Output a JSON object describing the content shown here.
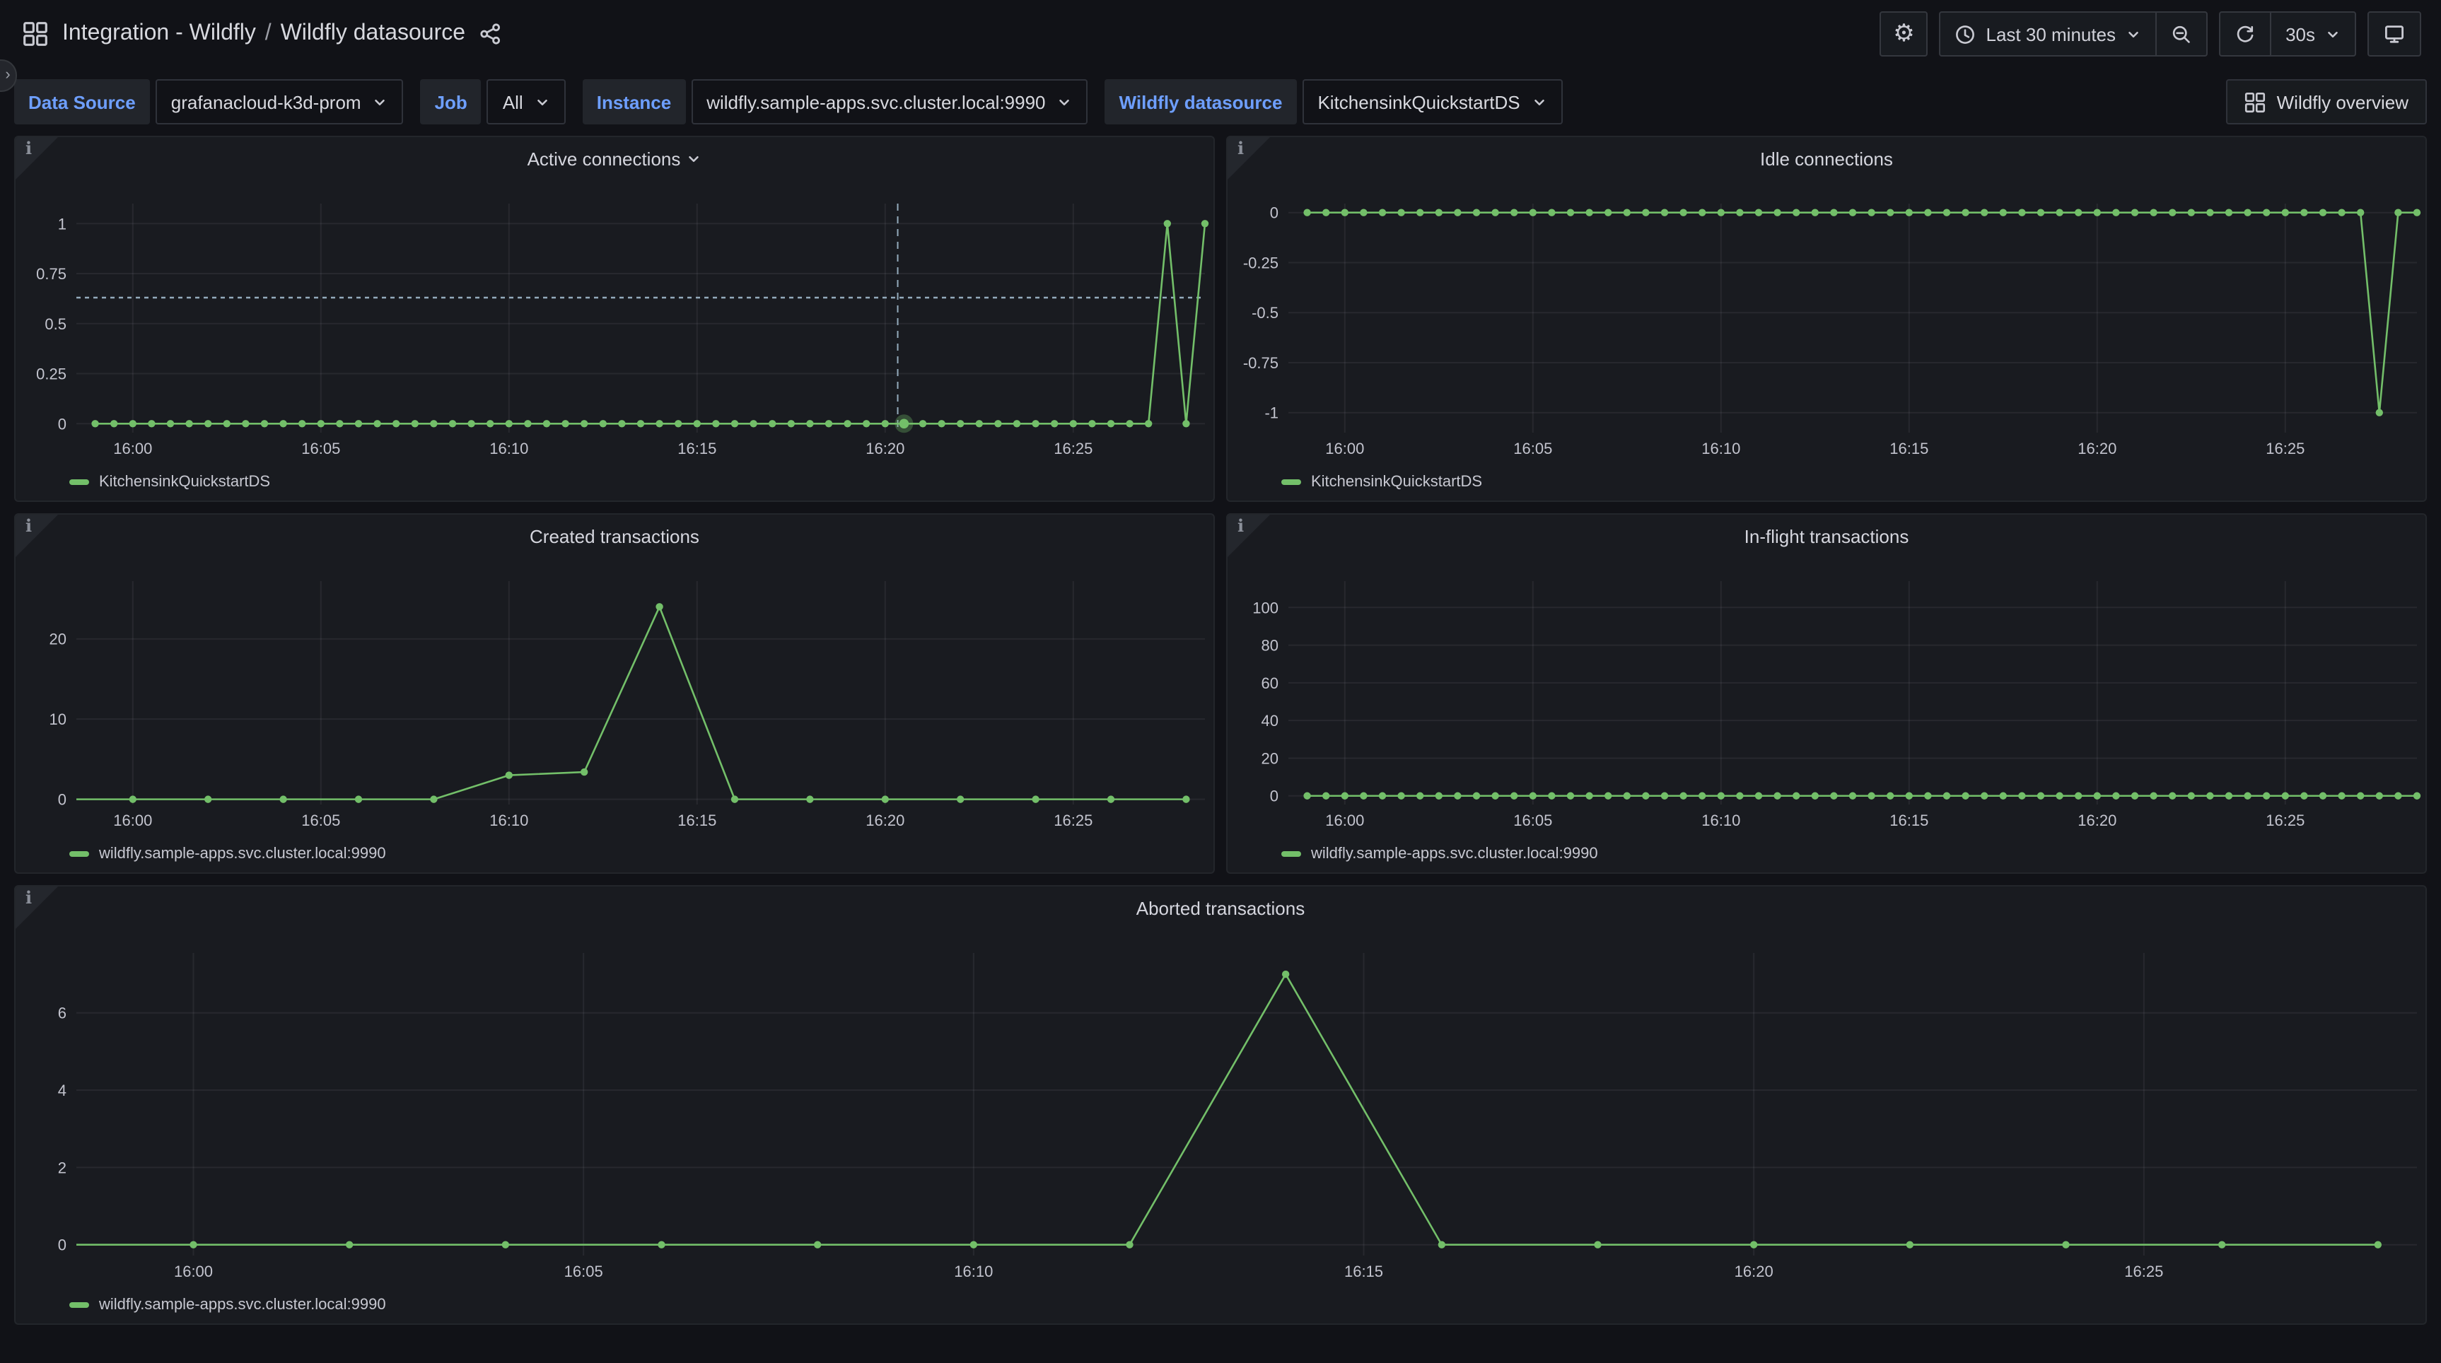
{
  "header": {
    "breadcrumb": {
      "folder": "Integration - Wildfly",
      "separator": "/",
      "dashboard": "Wildfly datasource"
    }
  },
  "toolbar": {
    "time_range_label": "Last 30 minutes",
    "refresh_interval": "30s",
    "gear_glyph": "⚙"
  },
  "edge_handle_glyph": "›",
  "panel_info_glyph": "i",
  "variables": [
    {
      "label": "Data Source",
      "value": "grafanacloud-k3d-prom"
    },
    {
      "label": "Job",
      "value": "All"
    },
    {
      "label": "Instance",
      "value": "wildfly.sample-apps.svc.cluster.local:9990"
    },
    {
      "label": "Wildfly datasource",
      "value": "KitchensinkQuickstartDS"
    }
  ],
  "overview_button": {
    "label": "Wildfly overview"
  },
  "colors": {
    "background": "#111217",
    "panel": "#191b20",
    "series_green": "#73BF69",
    "label_blue": "#6E9FFF",
    "crosshair": "#94abbc",
    "grid": "rgba(204,204,220,0.08)",
    "axis_text": "#c3c4ce"
  },
  "chart_data": [
    {
      "id": "active-connections",
      "type": "line",
      "title": "Active connections",
      "title_chevron": true,
      "legend": "KitchensinkQuickstartDS",
      "x_domain": [
        "15:58:30",
        "16:28:30"
      ],
      "x_ticks": [
        "16:00",
        "16:05",
        "16:10",
        "16:15",
        "16:20",
        "16:25"
      ],
      "y_min": -0.045,
      "y_max": 1.1,
      "y_ticks": [
        [
          0,
          "0"
        ],
        [
          0.25,
          "0.25"
        ],
        [
          0.5,
          "0.5"
        ],
        [
          0.75,
          "0.75"
        ],
        [
          1,
          "1"
        ]
      ],
      "series": {
        "name": "KitchensinkQuickstartDS",
        "color": "#73BF69",
        "start": "15:59:00",
        "interval_s": 30,
        "count": 60,
        "baseline": 0,
        "overrides": {
          "16:27:30": 1,
          "16:28:00": 0,
          "16:28:30": 1
        }
      },
      "crosshair": {
        "time": "16:20:20",
        "value": 0.63,
        "highlight_time": "16:20:30",
        "highlight_value": 0
      }
    },
    {
      "id": "idle-connections",
      "type": "line",
      "title": "Idle connections",
      "title_chevron": false,
      "legend": "KitchensinkQuickstartDS",
      "x_domain": [
        "15:58:30",
        "16:28:30"
      ],
      "x_ticks": [
        "16:00",
        "16:05",
        "16:10",
        "16:15",
        "16:20",
        "16:25"
      ],
      "y_min": -1.1,
      "y_max": 0.045,
      "y_ticks": [
        [
          0,
          "0"
        ],
        [
          -0.25,
          "-0.25"
        ],
        [
          -0.5,
          "-0.5"
        ],
        [
          -0.75,
          "-0.75"
        ],
        [
          -1,
          "-1"
        ]
      ],
      "series": {
        "name": "KitchensinkQuickstartDS",
        "color": "#73BF69",
        "start": "15:59:00",
        "interval_s": 30,
        "count": 60,
        "baseline": 0,
        "overrides": {
          "16:27:30": -1
        }
      }
    },
    {
      "id": "created-transactions",
      "type": "line",
      "title": "Created transactions",
      "title_chevron": false,
      "legend": "wildfly.sample-apps.svc.cluster.local:9990",
      "x_domain": [
        "15:58:30",
        "16:28:30"
      ],
      "x_ticks": [
        "16:00",
        "16:05",
        "16:10",
        "16:15",
        "16:20",
        "16:25"
      ],
      "y_min": -0.65,
      "y_max": 27.2,
      "y_ticks": [
        [
          0,
          "0"
        ],
        [
          10,
          "10"
        ],
        [
          20,
          "20"
        ]
      ],
      "series": {
        "name": "wildfly.sample-apps.svc.cluster.local:9990",
        "color": "#73BF69",
        "lead": true,
        "points": [
          [
            "15:58:30",
            0
          ],
          [
            "16:00:00",
            0
          ],
          [
            "16:02:00",
            0
          ],
          [
            "16:04:00",
            0
          ],
          [
            "16:06:00",
            0
          ],
          [
            "16:08:00",
            0
          ],
          [
            "16:10:00",
            3
          ],
          [
            "16:12:00",
            3.4
          ],
          [
            "16:14:00",
            24
          ],
          [
            "16:16:00",
            0
          ],
          [
            "16:18:00",
            0
          ],
          [
            "16:20:00",
            0
          ],
          [
            "16:22:00",
            0
          ],
          [
            "16:24:00",
            0
          ],
          [
            "16:26:00",
            0
          ],
          [
            "16:28:00",
            0
          ]
        ]
      }
    },
    {
      "id": "in-flight-transactions",
      "type": "line",
      "title": "In-flight transactions",
      "title_chevron": false,
      "legend": "wildfly.sample-apps.svc.cluster.local:9990",
      "x_domain": [
        "15:58:30",
        "16:28:30"
      ],
      "x_ticks": [
        "16:00",
        "16:05",
        "16:10",
        "16:15",
        "16:20",
        "16:25"
      ],
      "y_min": -4.6,
      "y_max": 114,
      "y_ticks": [
        [
          0,
          "0"
        ],
        [
          20,
          "20"
        ],
        [
          40,
          "40"
        ],
        [
          60,
          "60"
        ],
        [
          80,
          "80"
        ],
        [
          100,
          "100"
        ]
      ],
      "series": {
        "name": "wildfly.sample-apps.svc.cluster.local:9990",
        "color": "#73BF69",
        "start": "15:59:00",
        "interval_s": 30,
        "count": 60,
        "baseline": 0,
        "overrides": {}
      }
    },
    {
      "id": "aborted-transactions",
      "type": "line",
      "title": "Aborted transactions",
      "title_chevron": false,
      "legend": "wildfly.sample-apps.svc.cluster.local:9990",
      "x_domain": [
        "15:58:30",
        "16:28:30"
      ],
      "x_ticks": [
        "16:00",
        "16:05",
        "16:10",
        "16:15",
        "16:20",
        "16:25"
      ],
      "y_min": -0.28,
      "y_max": 7.55,
      "y_ticks": [
        [
          0,
          "0"
        ],
        [
          2,
          "2"
        ],
        [
          4,
          "4"
        ],
        [
          6,
          "6"
        ]
      ],
      "series": {
        "name": "wildfly.sample-apps.svc.cluster.local:9990",
        "color": "#73BF69",
        "lead": true,
        "points": [
          [
            "15:58:30",
            0
          ],
          [
            "16:00:00",
            0
          ],
          [
            "16:02:00",
            0
          ],
          [
            "16:04:00",
            0
          ],
          [
            "16:06:00",
            0
          ],
          [
            "16:08:00",
            0
          ],
          [
            "16:10:00",
            0
          ],
          [
            "16:12:00",
            0
          ],
          [
            "16:14:00",
            7
          ],
          [
            "16:16:00",
            0
          ],
          [
            "16:18:00",
            0
          ],
          [
            "16:20:00",
            0
          ],
          [
            "16:22:00",
            0
          ],
          [
            "16:24:00",
            0
          ],
          [
            "16:26:00",
            0
          ],
          [
            "16:28:00",
            0
          ]
        ]
      }
    }
  ]
}
